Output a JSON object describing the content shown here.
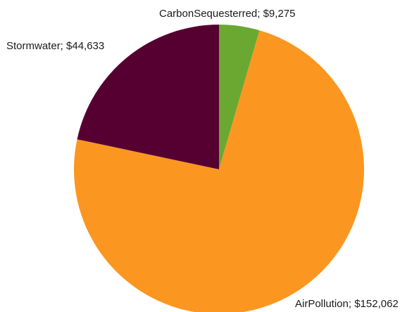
{
  "chart_data": {
    "type": "pie",
    "title": "",
    "start_angle_deg": 0,
    "direction": "clockwise",
    "slices": [
      {
        "label": "CarbonSequesterred; $9,275",
        "name": "CarbonSequesterred",
        "value": 9275,
        "color": "#6aa832"
      },
      {
        "label": "AirPollution; $152,062",
        "name": "AirPollution",
        "value": 152062,
        "color": "#fb9720"
      },
      {
        "label": "Stormwater; $44,633",
        "name": "Stormwater",
        "value": 44633,
        "color": "#560032"
      }
    ]
  }
}
